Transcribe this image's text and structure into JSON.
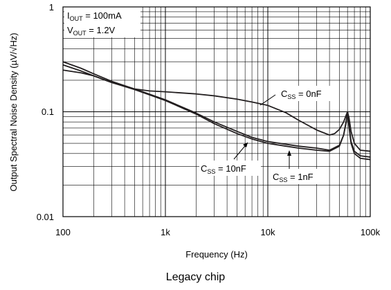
{
  "chart_data": {
    "type": "line",
    "xscale": "log",
    "yscale": "log",
    "xlim": [
      100,
      100000
    ],
    "ylim": [
      0.01,
      1
    ],
    "xlabel": "Frequency (Hz)",
    "ylabel": "Output Spectral Noise Density (µV/√Hz)",
    "x_ticks": [
      "100",
      "1k",
      "10k",
      "100k"
    ],
    "y_ticks": [
      "1",
      "0.1",
      "0.01"
    ],
    "grid": true,
    "conditions": [
      "I_OUT = 100mA",
      "V_OUT = 1.2V"
    ],
    "series": [
      {
        "name": "C_SS = 0nF",
        "x": [
          100,
          150,
          200,
          300,
          500,
          700,
          1000,
          2000,
          3000,
          5000,
          7000,
          10000,
          15000,
          20000,
          30000,
          40000,
          45000,
          50000,
          55000,
          58000,
          60000,
          62000,
          65000,
          70000,
          80000,
          100000
        ],
        "y": [
          0.25,
          0.235,
          0.22,
          0.19,
          0.165,
          0.158,
          0.155,
          0.148,
          0.142,
          0.132,
          0.124,
          0.115,
          0.098,
          0.083,
          0.067,
          0.06,
          0.062,
          0.068,
          0.08,
          0.092,
          0.1,
          0.088,
          0.065,
          0.05,
          0.043,
          0.042
        ]
      },
      {
        "name": "C_SS = 1nF",
        "x": [
          100,
          150,
          200,
          300,
          500,
          700,
          1000,
          2000,
          3000,
          5000,
          7000,
          10000,
          15000,
          20000,
          30000,
          40000,
          50000,
          55000,
          58000,
          60000,
          62000,
          65000,
          70000,
          80000,
          100000
        ],
        "y": [
          0.28,
          0.245,
          0.22,
          0.19,
          0.163,
          0.145,
          0.128,
          0.095,
          0.077,
          0.062,
          0.055,
          0.05,
          0.047,
          0.045,
          0.043,
          0.042,
          0.047,
          0.06,
          0.08,
          0.1,
          0.075,
          0.052,
          0.042,
          0.038,
          0.037
        ]
      },
      {
        "name": "C_SS = 10nF",
        "x": [
          100,
          150,
          200,
          300,
          500,
          700,
          1000,
          2000,
          3000,
          5000,
          7000,
          10000,
          15000,
          20000,
          30000,
          40000,
          50000,
          55000,
          58000,
          60000,
          62000,
          65000,
          70000,
          80000,
          100000
        ],
        "y": [
          0.3,
          0.26,
          0.23,
          0.195,
          0.165,
          0.147,
          0.13,
          0.097,
          0.08,
          0.065,
          0.057,
          0.052,
          0.049,
          0.047,
          0.045,
          0.043,
          0.048,
          0.06,
          0.078,
          0.097,
          0.072,
          0.05,
          0.04,
          0.036,
          0.035
        ]
      }
    ],
    "annotations": [
      {
        "main": "C",
        "sub": "SS",
        "rest": " = 0nF"
      },
      {
        "main": "C",
        "sub": "SS",
        "rest": " = 10nF"
      },
      {
        "main": "C",
        "sub": "SS",
        "rest": " = 1nF"
      }
    ],
    "caption": "Legacy chip"
  }
}
